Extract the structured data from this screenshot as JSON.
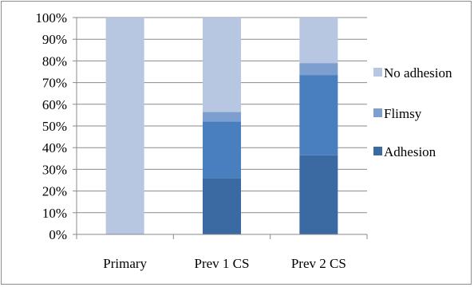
{
  "chart_data": {
    "type": "bar",
    "stacked": true,
    "normalized": true,
    "categories": [
      "Primary",
      "Prev 1 CS",
      "Prev 2 CS"
    ],
    "series": [
      {
        "name": "Adhesion",
        "values": [
          0,
          26,
          36.5
        ],
        "color": "#3a6aa1"
      },
      {
        "name": "Flimsy",
        "values": [
          0,
          26,
          37
        ],
        "color": "#4a7fbf"
      },
      {
        "name": "Flimsy",
        "values": [
          0,
          4.5,
          5.5
        ],
        "color": "#7d9fd0"
      },
      {
        "name": "No adhesion",
        "values": [
          100,
          43.5,
          21
        ],
        "color": "#b7c7e2"
      }
    ],
    "y_ticks": [
      "0%",
      "10%",
      "20%",
      "30%",
      "40%",
      "50%",
      "60%",
      "70%",
      "80%",
      "90%",
      "100%"
    ],
    "ylim": [
      0,
      100
    ],
    "grid": true,
    "legend_position": "right",
    "legend": [
      {
        "label": "No adhesion",
        "color": "#b7c7e2"
      },
      {
        "label": "Flimsy",
        "color": "#7d9fd0"
      },
      {
        "label": "Adhesion",
        "color": "#3a6aa1"
      }
    ],
    "title": "",
    "xlabel": "",
    "ylabel": ""
  }
}
